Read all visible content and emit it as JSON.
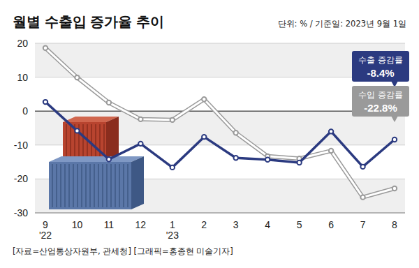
{
  "chart_data": {
    "type": "line",
    "title": "월별 수출입 증가율 추이",
    "subtitle": "단위: % / 기준일: 2023년 9월 1일",
    "source": "[자료=산업통상자원부, 관세청] [그래픽=홍종현 미술기자]",
    "categories": [
      "9\n'22",
      "10",
      "11",
      "12",
      "1\n'23",
      "2",
      "3",
      "4",
      "5",
      "6",
      "7",
      "8"
    ],
    "series": [
      {
        "name": "수출 증감률",
        "color": "#2b3a80",
        "marker": "circle",
        "values": [
          2.7,
          -5.8,
          -14.2,
          -9.6,
          -16.6,
          -7.6,
          -13.8,
          -14.3,
          -15.2,
          -6.0,
          -16.4,
          -8.4
        ]
      },
      {
        "name": "수입 증감률",
        "color": "#9a9a9a",
        "marker": "circle",
        "values": [
          18.6,
          9.9,
          2.5,
          -2.4,
          -2.6,
          3.5,
          -6.4,
          -13.3,
          -14.0,
          -11.7,
          -25.4,
          -22.8
        ]
      }
    ],
    "annotations": [
      {
        "text": "-8.4%"
      },
      {
        "text": "-22.8%"
      }
    ],
    "ylim": [
      -30,
      20
    ],
    "yticks": [
      -30,
      -20,
      -10,
      0,
      10,
      20
    ],
    "grid": true
  }
}
